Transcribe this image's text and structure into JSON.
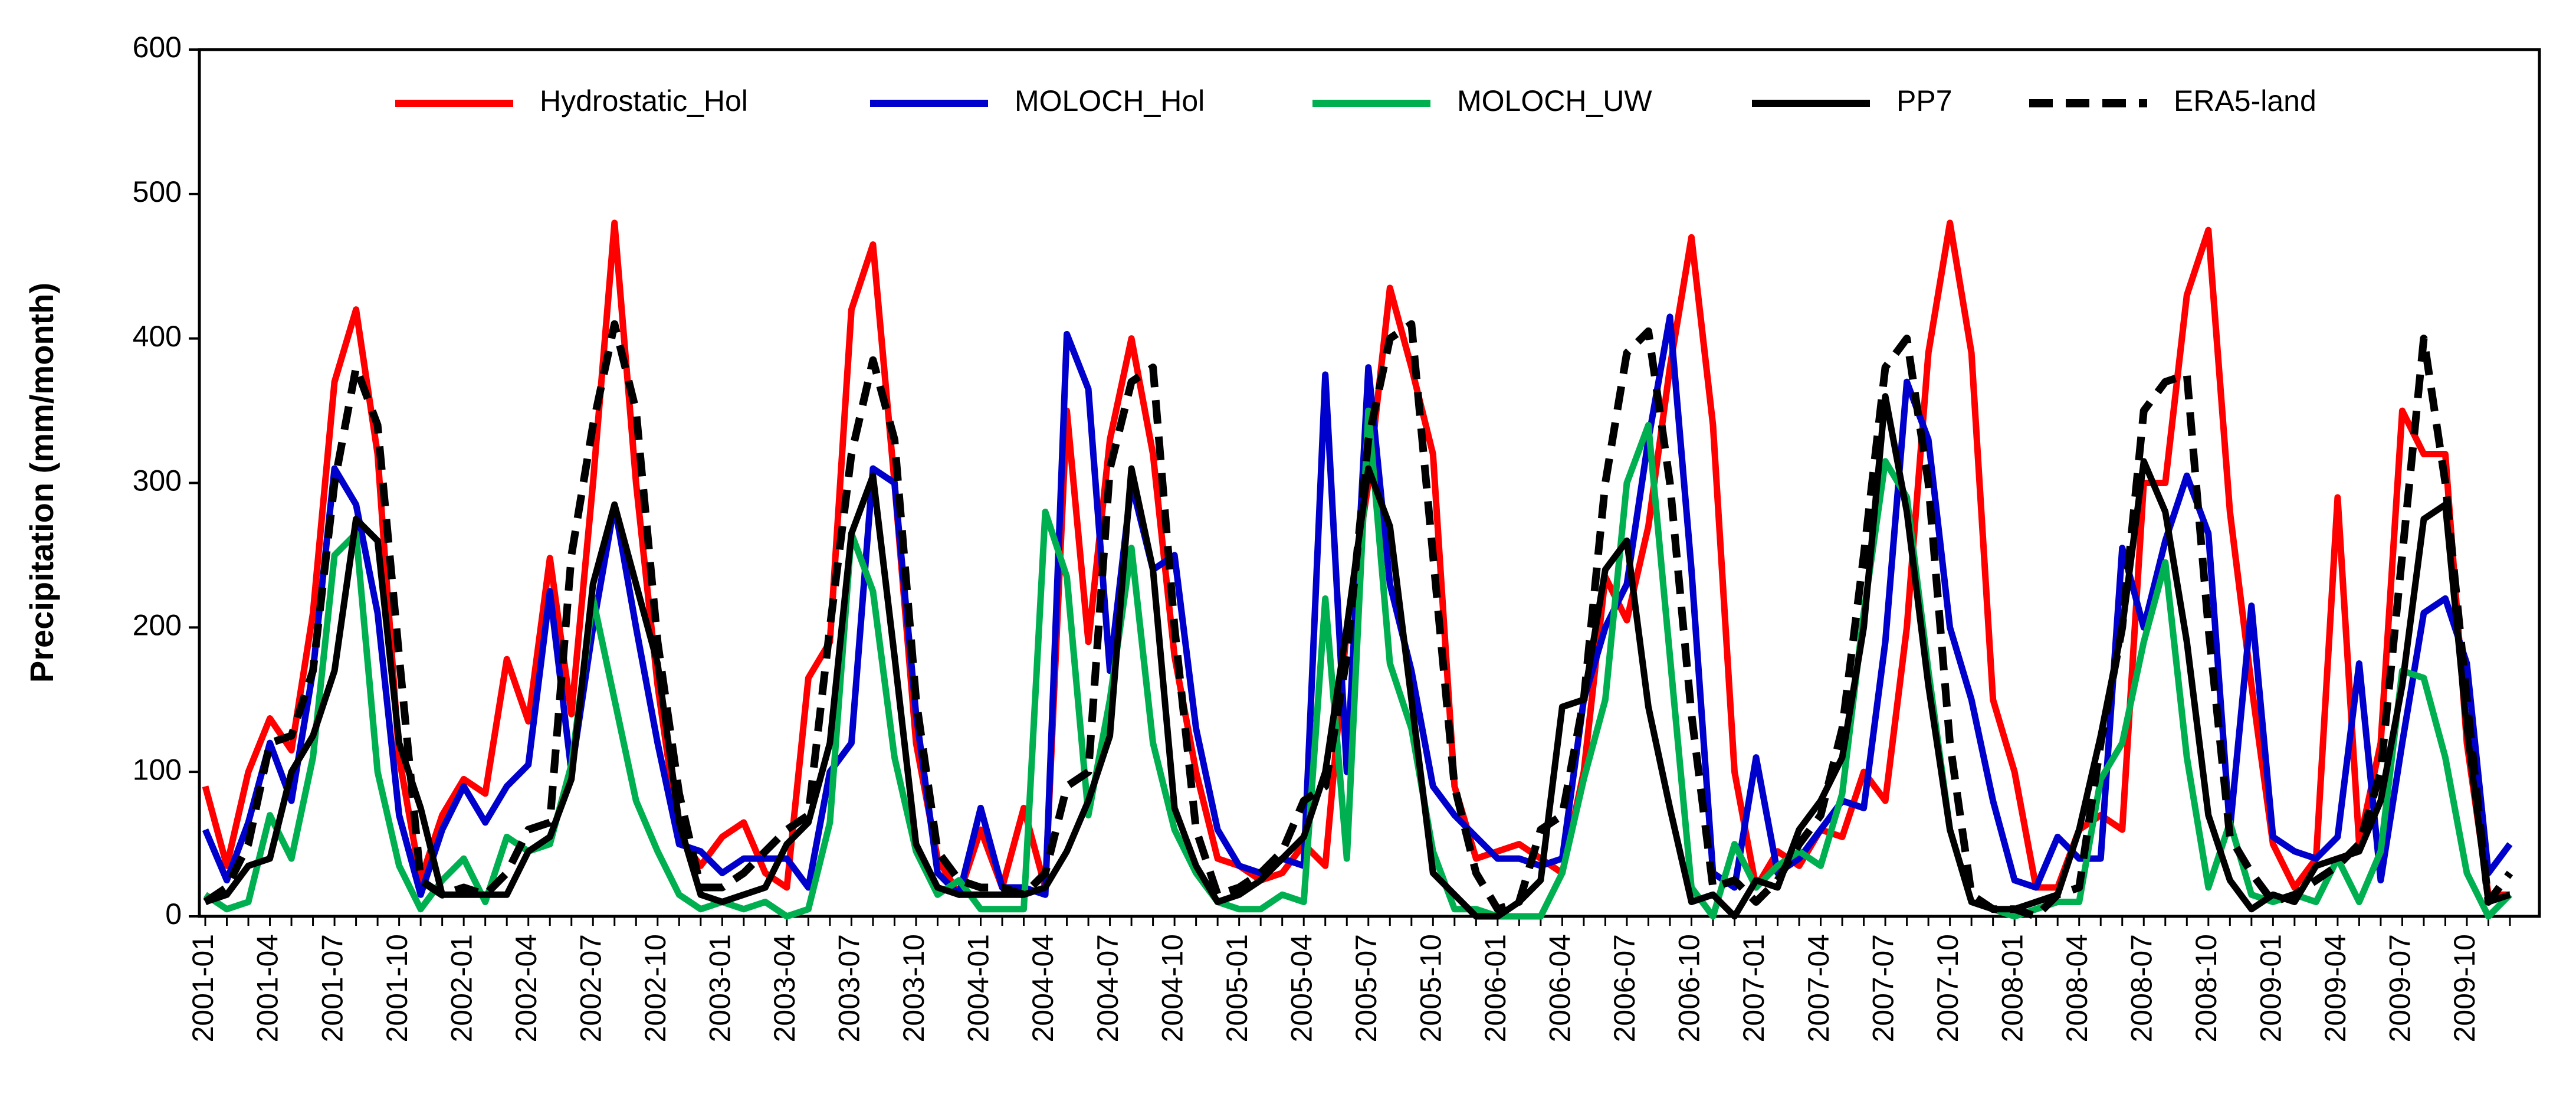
{
  "chart_data": {
    "type": "line",
    "y_label": "Precipitation (mm/month)",
    "categories": [
      "2001-01",
      null,
      null,
      "2001-04",
      null,
      null,
      "2001-07",
      null,
      null,
      "2001-10",
      null,
      null,
      "2002-01",
      null,
      null,
      "2002-04",
      null,
      null,
      "2002-07",
      null,
      null,
      "2002-10",
      null,
      null,
      "2003-01",
      null,
      null,
      "2003-04",
      null,
      null,
      "2003-07",
      null,
      null,
      "2003-10",
      null,
      null,
      "2004-01",
      null,
      null,
      "2004-04",
      null,
      null,
      "2004-07",
      null,
      null,
      "2004-10",
      null,
      null,
      "2005-01",
      null,
      null,
      "2005-04",
      null,
      null,
      "2005-07",
      null,
      null,
      "2005-10",
      null,
      null,
      "2006-01",
      null,
      null,
      "2006-04",
      null,
      null,
      "2006-07",
      null,
      null,
      "2006-10",
      null,
      null,
      "2007-01",
      null,
      null,
      "2007-04",
      null,
      null,
      "2007-07",
      null,
      null,
      "2007-10",
      null,
      null,
      "2008-01",
      null,
      null,
      "2008-04",
      null,
      null,
      "2008-07",
      null,
      null,
      "2008-10",
      null,
      null,
      "2009-01",
      null,
      null,
      "2009-04",
      null,
      null,
      "2009-07",
      null,
      null,
      "2009-10",
      null,
      null
    ],
    "ylim": [
      0,
      600
    ],
    "yticks": [
      0,
      100,
      200,
      300,
      400,
      500,
      600
    ],
    "legend": "top",
    "series": [
      {
        "name": "Hydrostatic_Hol",
        "color": "#ff0000",
        "dashed": false,
        "values": [
          90,
          35,
          100,
          137,
          115,
          210,
          370,
          420,
          320,
          110,
          25,
          70,
          95,
          85,
          178,
          135,
          248,
          140,
          300,
          480,
          300,
          160,
          55,
          35,
          55,
          65,
          30,
          20,
          165,
          190,
          420,
          465,
          300,
          120,
          40,
          15,
          60,
          20,
          75,
          20,
          350,
          190,
          330,
          400,
          320,
          180,
          100,
          40,
          35,
          25,
          30,
          50,
          35,
          200,
          300,
          435,
          380,
          320,
          90,
          40,
          45,
          50,
          40,
          30,
          100,
          235,
          205,
          270,
          380,
          470,
          340,
          100,
          20,
          45,
          35,
          60,
          55,
          100,
          80,
          200,
          390,
          480,
          390,
          150,
          100,
          20,
          20,
          60,
          70,
          60,
          300,
          300,
          430,
          475,
          280,
          160,
          50,
          20,
          40,
          290,
          50,
          120,
          350,
          320,
          320,
          120,
          15,
          15
        ]
      },
      {
        "name": "MOLOCH_Hol",
        "color": "#0000cc",
        "dashed": false,
        "values": [
          60,
          25,
          65,
          120,
          80,
          170,
          310,
          285,
          210,
          70,
          15,
          60,
          90,
          65,
          90,
          105,
          225,
          100,
          200,
          285,
          200,
          120,
          50,
          45,
          30,
          40,
          40,
          40,
          20,
          100,
          120,
          310,
          300,
          140,
          30,
          15,
          75,
          20,
          20,
          15,
          403,
          365,
          170,
          300,
          240,
          250,
          130,
          60,
          35,
          30,
          40,
          35,
          375,
          100,
          380,
          230,
          170,
          90,
          70,
          55,
          40,
          40,
          35,
          40,
          150,
          200,
          230,
          330,
          415,
          240,
          30,
          20,
          110,
          30,
          40,
          60,
          80,
          75,
          190,
          370,
          330,
          200,
          150,
          80,
          25,
          20,
          55,
          40,
          40,
          255,
          200,
          260,
          305,
          265,
          60,
          215,
          55,
          45,
          40,
          55,
          175,
          25,
          120,
          210,
          220,
          175,
          30,
          50
        ]
      },
      {
        "name": "MOLOCH_UW",
        "color": "#00b050",
        "dashed": false,
        "values": [
          15,
          5,
          10,
          70,
          40,
          110,
          250,
          265,
          100,
          35,
          5,
          25,
          40,
          10,
          55,
          45,
          50,
          105,
          220,
          150,
          80,
          45,
          15,
          5,
          10,
          5,
          10,
          0,
          5,
          65,
          265,
          225,
          110,
          45,
          15,
          25,
          5,
          5,
          5,
          280,
          235,
          70,
          150,
          255,
          120,
          60,
          30,
          10,
          5,
          5,
          15,
          10,
          220,
          40,
          350,
          175,
          130,
          45,
          5,
          5,
          0,
          0,
          0,
          30,
          95,
          150,
          300,
          340,
          180,
          20,
          0,
          50,
          20,
          35,
          45,
          35,
          85,
          210,
          315,
          290,
          170,
          60,
          10,
          5,
          0,
          5,
          10,
          10,
          95,
          120,
          190,
          245,
          110,
          20,
          65,
          15,
          10,
          15,
          10,
          40,
          10,
          45,
          170,
          165,
          110,
          30,
          0,
          15
        ]
      },
      {
        "name": "PP7",
        "color": "#000000",
        "dashed": false,
        "values": [
          10,
          15,
          35,
          40,
          100,
          125,
          170,
          275,
          260,
          120,
          75,
          15,
          15,
          15,
          15,
          45,
          55,
          95,
          230,
          285,
          230,
          175,
          65,
          15,
          10,
          15,
          20,
          50,
          65,
          120,
          265,
          305,
          180,
          50,
          20,
          15,
          15,
          15,
          15,
          20,
          45,
          80,
          125,
          310,
          240,
          75,
          35,
          10,
          15,
          25,
          40,
          55,
          100,
          200,
          310,
          270,
          150,
          30,
          15,
          0,
          0,
          10,
          25,
          145,
          150,
          240,
          260,
          145,
          75,
          10,
          15,
          0,
          25,
          20,
          60,
          80,
          110,
          200,
          360,
          280,
          160,
          60,
          10,
          5,
          5,
          10,
          15,
          60,
          125,
          200,
          315,
          280,
          190,
          70,
          25,
          5,
          15,
          10,
          35,
          40,
          45,
          80,
          160,
          275,
          285,
          130,
          10,
          15
        ]
      },
      {
        "name": "ERA5-land",
        "color": "#000000",
        "dashed": true,
        "values": [
          10,
          20,
          50,
          120,
          125,
          170,
          300,
          380,
          340,
          180,
          25,
          15,
          20,
          15,
          30,
          60,
          65,
          250,
          340,
          410,
          350,
          190,
          85,
          20,
          20,
          30,
          45,
          60,
          70,
          200,
          320,
          385,
          330,
          150,
          45,
          25,
          20,
          20,
          15,
          30,
          90,
          100,
          310,
          370,
          380,
          200,
          60,
          15,
          20,
          30,
          45,
          80,
          90,
          180,
          330,
          400,
          410,
          250,
          90,
          30,
          5,
          10,
          60,
          70,
          150,
          300,
          390,
          405,
          300,
          140,
          20,
          25,
          10,
          25,
          50,
          70,
          130,
          250,
          380,
          400,
          300,
          120,
          15,
          5,
          5,
          0,
          15,
          20,
          120,
          200,
          350,
          370,
          375,
          200,
          55,
          30,
          10,
          15,
          25,
          35,
          50,
          100,
          250,
          400,
          300,
          150,
          10,
          30
        ]
      }
    ]
  }
}
